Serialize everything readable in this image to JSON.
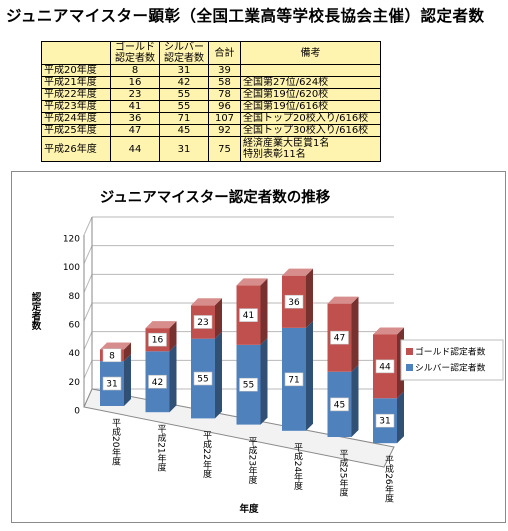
{
  "page_title": "ジュニアマイスター顕彰（全国工業高等学校長協会主催）認定者数",
  "table": {
    "headers": {
      "blank": "",
      "gold": [
        "ゴールド",
        "認定者数"
      ],
      "silver": [
        "シルバー",
        "認定者数"
      ],
      "total": "合計",
      "remarks": "備考"
    },
    "rows": [
      {
        "year": "平成20年度",
        "gold": "8",
        "silver": "31",
        "total": "39",
        "remarks": [
          ""
        ]
      },
      {
        "year": "平成21年度",
        "gold": "16",
        "silver": "42",
        "total": "58",
        "remarks": [
          "全国第27位/624校"
        ]
      },
      {
        "year": "平成22年度",
        "gold": "23",
        "silver": "55",
        "total": "78",
        "remarks": [
          "全国第19位/620校"
        ]
      },
      {
        "year": "平成23年度",
        "gold": "41",
        "silver": "55",
        "total": "96",
        "remarks": [
          "全国第19位/616校"
        ]
      },
      {
        "year": "平成24年度",
        "gold": "36",
        "silver": "71",
        "total": "107",
        "remarks": [
          "全国トップ20校入り/616校"
        ]
      },
      {
        "year": "平成25年度",
        "gold": "47",
        "silver": "45",
        "total": "92",
        "remarks": [
          "全国トップ30校入り/616校"
        ]
      },
      {
        "year": "平成26年度",
        "gold": "44",
        "silver": "31",
        "total": "75",
        "remarks": [
          "経済産業大臣賞1名",
          "特別表彰11名"
        ]
      }
    ]
  },
  "chart_data": {
    "type": "bar",
    "stacked": true,
    "three_d": true,
    "title": "ジュニアマイスター認定者数の推移",
    "categories": [
      "平成20年度",
      "平成21年度",
      "平成22年度",
      "平成23年度",
      "平成24年度",
      "平成25年度",
      "平成26年度"
    ],
    "series": [
      {
        "name": "シルバー認定者数",
        "values": [
          31,
          42,
          55,
          55,
          71,
          45,
          31
        ],
        "color": "#4f81bd"
      },
      {
        "name": "ゴールド認定者数",
        "values": [
          8,
          16,
          23,
          41,
          36,
          47,
          44
        ],
        "color": "#c0504d"
      }
    ],
    "xlabel": "年度",
    "ylabel": "認定者数",
    "ylim": [
      0,
      120
    ],
    "yticks": [
      0,
      20,
      40,
      60,
      80,
      100,
      120
    ],
    "grid": true,
    "legend": "right",
    "legend_order": [
      "ゴールド認定者数",
      "シルバー認定者数"
    ]
  }
}
